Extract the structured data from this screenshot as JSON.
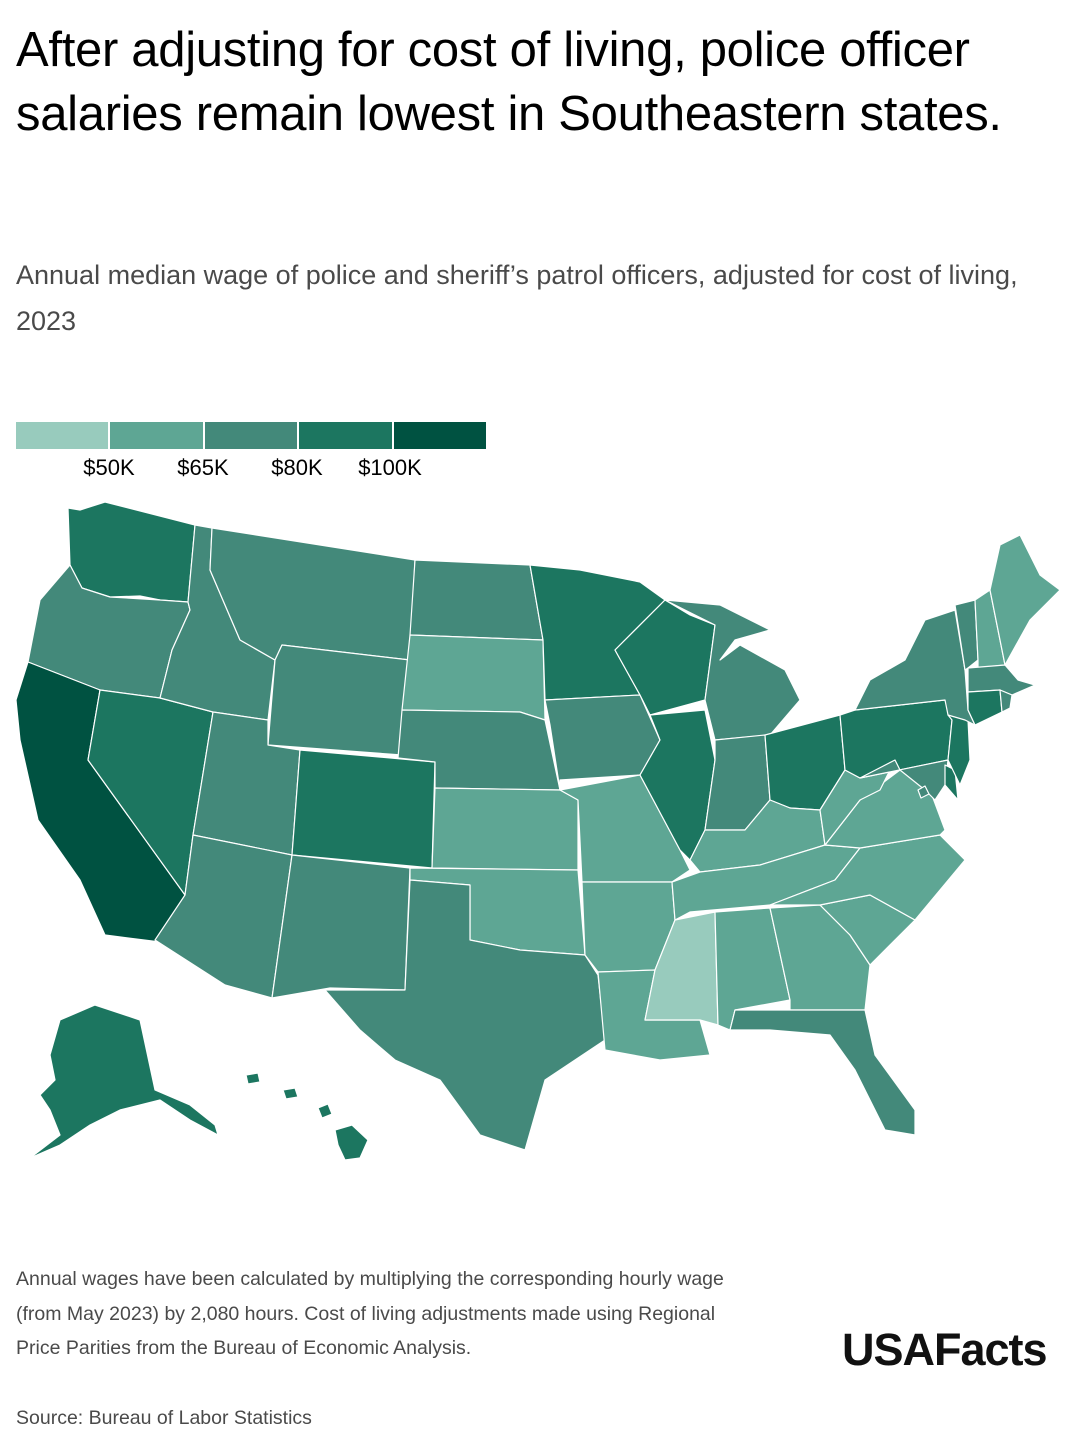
{
  "title": "After adjusting for cost of living, police officer salaries remain lowest in Southeastern states.",
  "subtitle": "Annual median wage of police and sheriff’s patrol officers, adjusted for cost of living, 2023",
  "legend": {
    "thresholds": [
      "$50K",
      "$65K",
      "$80K",
      "$100K"
    ],
    "colors": [
      "#98cbbd",
      "#5ea694",
      "#43897a",
      "#1c7660",
      "#005241"
    ]
  },
  "note": "Annual wages have been calculated by multiplying the corresponding hourly wage (from May 2023) by 2,080 hours. Cost of living adjustments made using Regional Price Parities from the Bureau of Economic Analysis.",
  "source": "Source: Bureau of Labor Statistics",
  "brand": "USAFacts",
  "chart_data": {
    "type": "choropleth",
    "bins": [
      {
        "label": "under $50K",
        "color": "#98cbbd"
      },
      {
        "label": "$50K–$65K",
        "color": "#5ea694"
      },
      {
        "label": "$65K–$80K",
        "color": "#43897a"
      },
      {
        "label": "$80K–$100K",
        "color": "#1c7660"
      },
      {
        "label": "$100K and over",
        "color": "#005241"
      }
    ],
    "states": {
      "WA": 3,
      "OR": 2,
      "CA": 4,
      "NV": 3,
      "ID": 2,
      "MT": 2,
      "WY": 2,
      "UT": 2,
      "AZ": 2,
      "CO": 3,
      "NM": 2,
      "ND": 2,
      "SD": 1,
      "NE": 2,
      "KS": 1,
      "OK": 1,
      "TX": 2,
      "MN": 3,
      "IA": 2,
      "MO": 1,
      "AR": 1,
      "LA": 1,
      "WI": 3,
      "IL": 3,
      "MI": 2,
      "IN": 2,
      "OH": 3,
      "KY": 1,
      "TN": 1,
      "MS": 0,
      "AL": 1,
      "GA": 1,
      "FL": 2,
      "SC": 1,
      "NC": 1,
      "VA": 1,
      "WV": 1,
      "MD": 2,
      "DE": 3,
      "NJ": 3,
      "PA": 3,
      "NY": 2,
      "CT": 3,
      "RI": 2,
      "MA": 2,
      "VT": 2,
      "NH": 1,
      "ME": 1,
      "DC": 2,
      "AK": 3,
      "HI": 3
    }
  }
}
